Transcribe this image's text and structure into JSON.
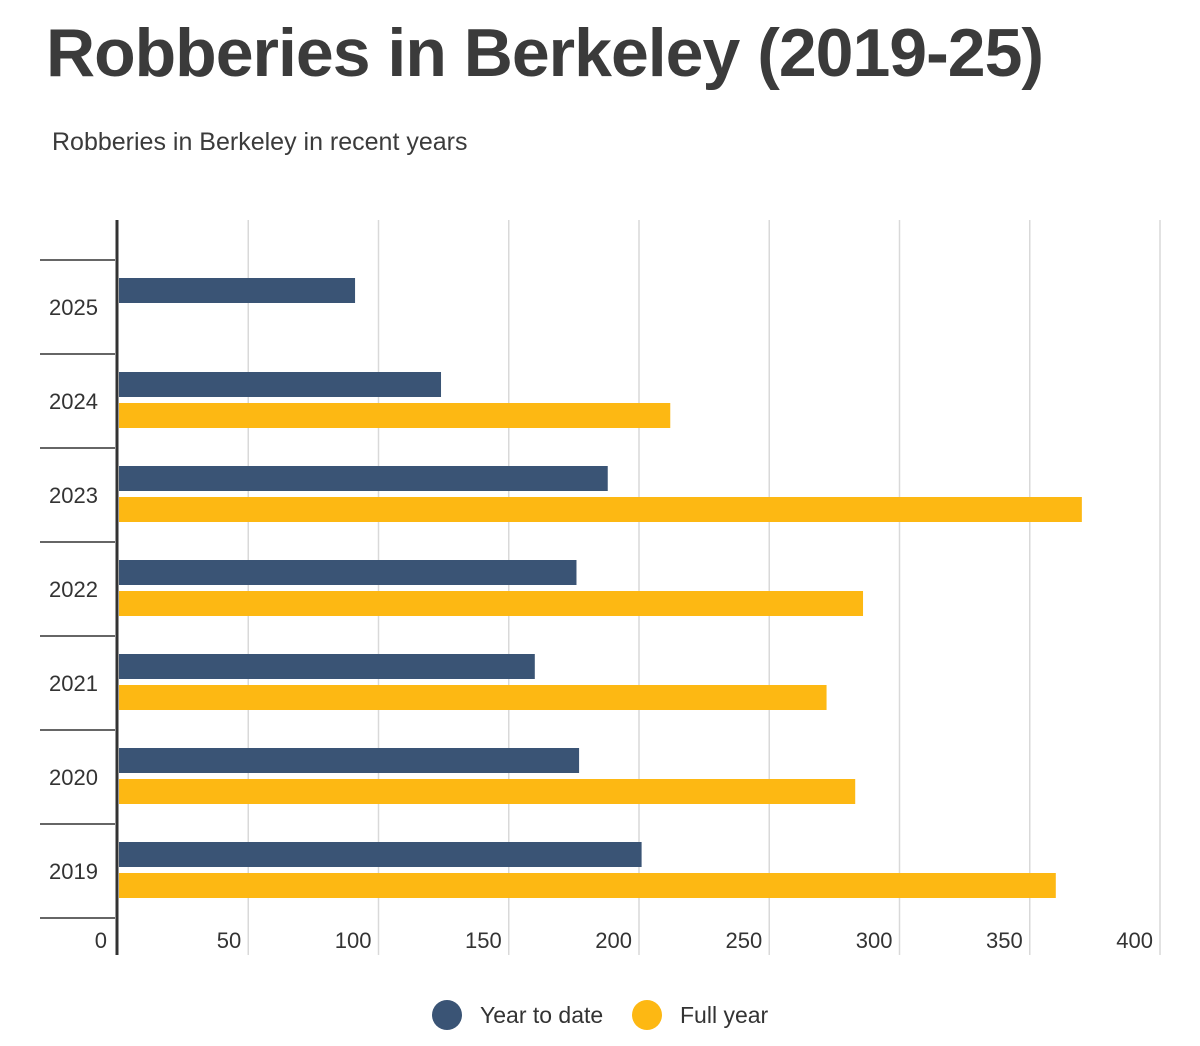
{
  "title": "Robberies in Berkeley (2019-25)",
  "subtitle": "Robberies in Berkeley in recent years",
  "colors": {
    "year_to_date": "#3a5475",
    "full_year": "#fdb813",
    "grid": "#d9d9d9",
    "axis": "#333333"
  },
  "chart_data": {
    "type": "bar",
    "orientation": "horizontal",
    "categories": [
      "2025",
      "2024",
      "2023",
      "2022",
      "2021",
      "2020",
      "2019"
    ],
    "series": [
      {
        "name": "Year to date",
        "values": [
          91,
          124,
          188,
          176,
          160,
          177,
          201
        ]
      },
      {
        "name": "Full year",
        "values": [
          null,
          212,
          370,
          286,
          272,
          283,
          360
        ]
      }
    ],
    "xlim": [
      0,
      400
    ],
    "x_ticks": [
      "0",
      "50",
      "100",
      "150",
      "200",
      "250",
      "300",
      "350",
      "400"
    ],
    "grid": true,
    "legend_position": "bottom"
  },
  "legend": [
    {
      "label": "Year to date"
    },
    {
      "label": "Full year"
    }
  ]
}
